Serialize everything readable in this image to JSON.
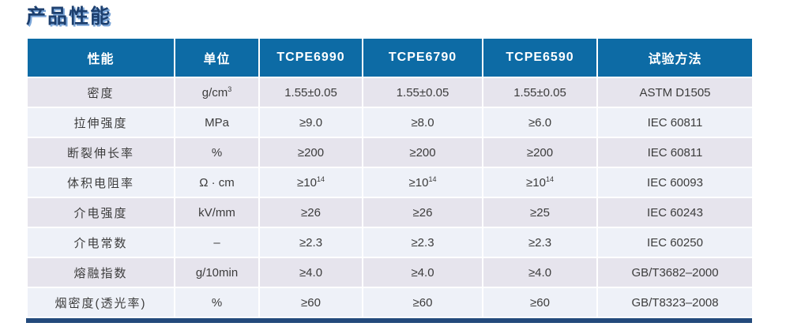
{
  "page_title": "产品性能",
  "colors": {
    "header_bg": "#0d6ba5",
    "title_text": "#1d3f6e",
    "title_shadow": "#7ba6d9",
    "row_odd_bg": "#e6e4ed",
    "row_even_bg": "#eef1f8",
    "bottom_bar": "#234a7c",
    "cell_text": "#3c3c3c",
    "header_text": "#ffffff"
  },
  "table": {
    "headers": [
      "性能",
      "单位",
      "TCPE6990",
      "TCPE6790",
      "TCPE6590",
      "试验方法"
    ],
    "rows": [
      [
        "密度",
        {
          "t": "g/cm",
          "sup": "3"
        },
        "1.55±0.05",
        "1.55±0.05",
        "1.55±0.05",
        "ASTM D1505"
      ],
      [
        "拉伸强度",
        "MPa",
        "≥9.0",
        "≥8.0",
        "≥6.0",
        "IEC 60811"
      ],
      [
        "断裂伸长率",
        "%",
        "≥200",
        "≥200",
        "≥200",
        "IEC 60811"
      ],
      [
        "体积电阻率",
        "Ω · cm",
        {
          "t": "≥10",
          "sup": "14"
        },
        {
          "t": "≥10",
          "sup": "14"
        },
        {
          "t": "≥10",
          "sup": "14"
        },
        "IEC 60093"
      ],
      [
        "介电强度",
        "kV/mm",
        "≥26",
        "≥26",
        "≥25",
        "IEC 60243"
      ],
      [
        "介电常数",
        "–",
        "≥2.3",
        "≥2.3",
        "≥2.3",
        "IEC 60250"
      ],
      [
        "熔融指数",
        "g/10min",
        "≥4.0",
        "≥4.0",
        "≥4.0",
        "GB/T3682–2000"
      ],
      [
        "烟密度(透光率)",
        "%",
        "≥60",
        "≥60",
        "≥60",
        "GB/T8323–2008"
      ]
    ]
  }
}
